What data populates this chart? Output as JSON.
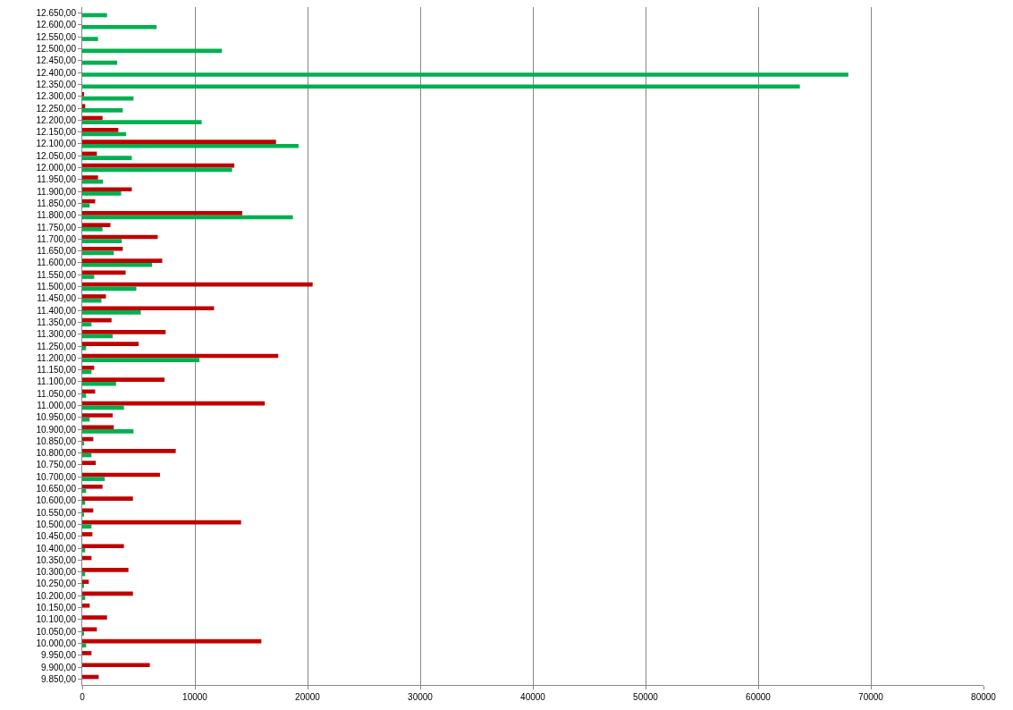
{
  "chart_data": {
    "type": "bar",
    "orientation": "horizontal",
    "categories": [
      "12.650,00",
      "12.600,00",
      "12.550,00",
      "12.500,00",
      "12.450,00",
      "12.400,00",
      "12.350,00",
      "12.300,00",
      "12.250,00",
      "12.200,00",
      "12.150,00",
      "12.100,00",
      "12.050,00",
      "12.000,00",
      "11.950,00",
      "11.900,00",
      "11.850,00",
      "11.800,00",
      "11.750,00",
      "11.700,00",
      "11.650,00",
      "11.600,00",
      "11.550,00",
      "11.500,00",
      "11.450,00",
      "11.400,00",
      "11.350,00",
      "11.300,00",
      "11.250,00",
      "11.200,00",
      "11.150,00",
      "11.100,00",
      "11.050,00",
      "11.000,00",
      "10.950,00",
      "10.900,00",
      "10.850,00",
      "10.800,00",
      "10.750,00",
      "10.700,00",
      "10.650,00",
      "10.600,00",
      "10.550,00",
      "10.500,00",
      "10.450,00",
      "10.400,00",
      "10.350,00",
      "10.300,00",
      "10.250,00",
      "10.200,00",
      "10.150,00",
      "10.100,00",
      "10.050,00",
      "10.000,00",
      "9.950,00",
      "9.900,00",
      "9.850,00"
    ],
    "series": [
      {
        "color": "#c00000",
        "values": [
          null,
          null,
          null,
          null,
          null,
          null,
          null,
          100,
          260,
          1800,
          3200,
          17200,
          1300,
          13500,
          1400,
          4400,
          1150,
          14200,
          2500,
          6700,
          3600,
          7100,
          3850,
          20450,
          2100,
          11700,
          2600,
          7400,
          5000,
          17400,
          1060,
          7300,
          1150,
          16200,
          2700,
          2800,
          980,
          8300,
          1200,
          6900,
          1800,
          4500,
          980,
          14100,
          900,
          3700,
          820,
          4100,
          580,
          4500,
          660,
          2200,
          1300,
          15900,
          820,
          6000,
          1460
        ]
      },
      {
        "color": "#00b050",
        "values": [
          2200,
          6600,
          1400,
          12400,
          3100,
          68000,
          63700,
          4550,
          3600,
          10600,
          3900,
          19200,
          4400,
          13300,
          1850,
          3450,
          660,
          18700,
          1800,
          3500,
          2800,
          6200,
          1060,
          4800,
          1700,
          5200,
          820,
          2700,
          340,
          10400,
          820,
          3000,
          340,
          3700,
          660,
          4550,
          100,
          820,
          null,
          2000,
          340,
          260,
          100,
          820,
          null,
          260,
          null,
          260,
          100,
          260,
          null,
          null,
          80,
          340,
          null,
          null,
          null
        ]
      }
    ],
    "xlim": [
      0,
      80000
    ],
    "xticks": [
      0,
      10000,
      20000,
      30000,
      40000,
      50000,
      60000,
      70000,
      80000
    ],
    "grid": "x"
  }
}
